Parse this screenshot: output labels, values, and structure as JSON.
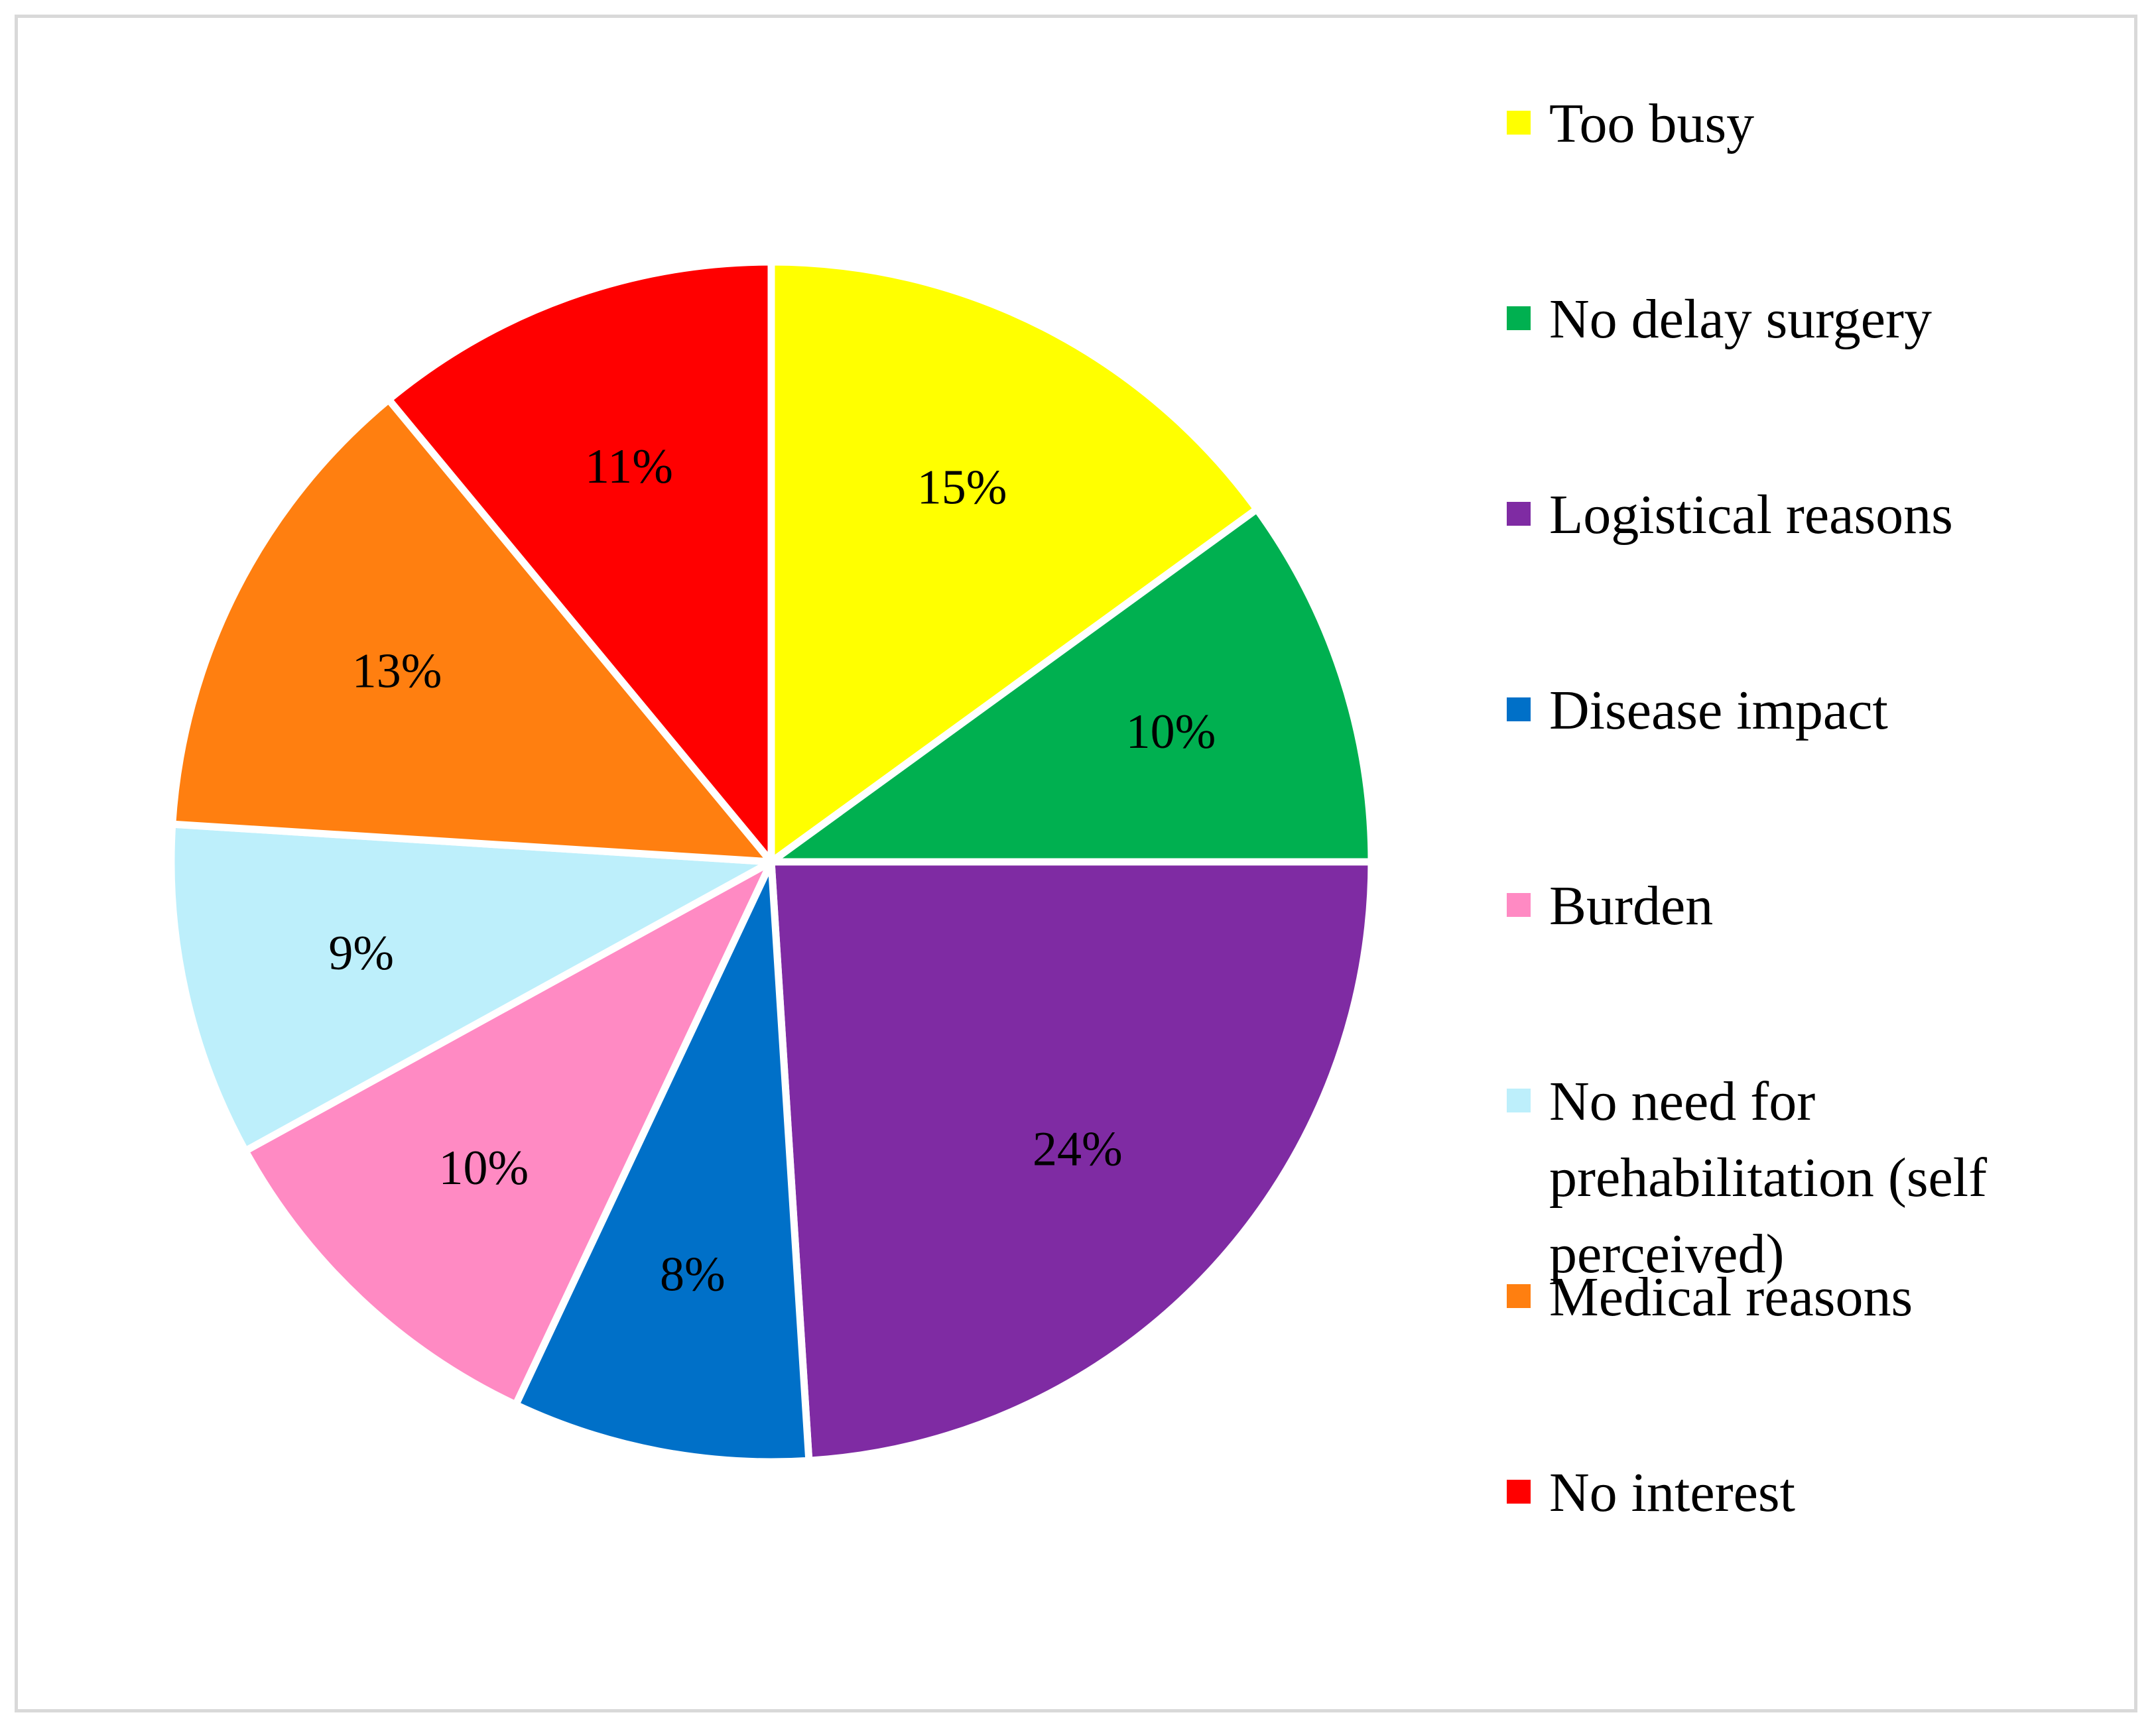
{
  "chart_data": {
    "type": "pie",
    "title": "",
    "legend_placement": "right",
    "slices": [
      {
        "label": "Too busy",
        "value": 15,
        "value_label": "15%",
        "color": "#FFFF00"
      },
      {
        "label": "No delay surgery",
        "value": 10,
        "value_label": "10%",
        "color": "#00B050"
      },
      {
        "label": "Logistical reasons",
        "value": 24,
        "value_label": "24%",
        "color": "#7F2BA3"
      },
      {
        "label": "Disease impact",
        "value": 8,
        "value_label": "8%",
        "color": "#0070C8"
      },
      {
        "label": "Burden",
        "value": 10,
        "value_label": "10%",
        "color": "#FF8AC3"
      },
      {
        "label": "No need for prehabilitation (self perceived)",
        "legend_lines": [
          "No need for",
          "prehabilitation (self",
          "perceived)"
        ],
        "value": 9,
        "value_label": "9%",
        "color": "#BDEFFB"
      },
      {
        "label": "Medical reasons",
        "value": 13,
        "value_label": "13%",
        "color": "#FF7F10"
      },
      {
        "label": "No interest",
        "value": 11,
        "value_label": "11%",
        "color": "#FF0000"
      }
    ]
  }
}
